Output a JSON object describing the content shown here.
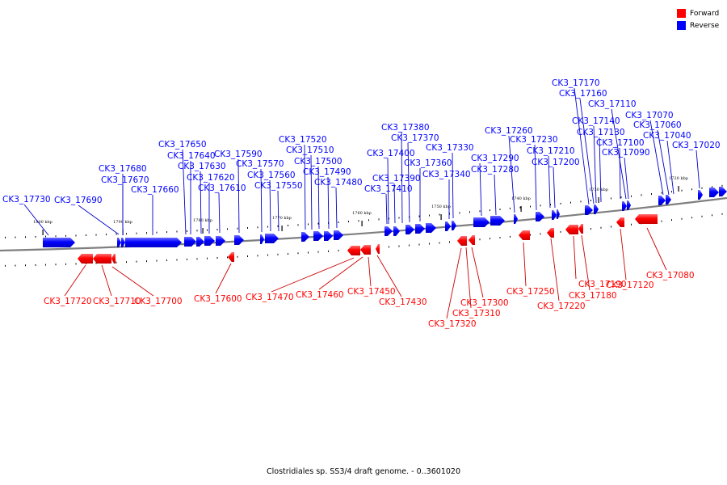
{
  "legend": {
    "forward_label": "Forward",
    "reverse_label": "Reverse",
    "forward_color": "#ff0000",
    "reverse_color": "#0000ff"
  },
  "caption": "Clostridiales sp. SS3/4 draft genome. - 0..3601020",
  "backbone_color": "#7f7f7f",
  "leader_forward_color": "#cc0000",
  "leader_reverse_color": "#0000cc",
  "scale_ticks": [
    "1800 kbp",
    "1790 kbp",
    "1780 kbp",
    "1770 kbp",
    "1760 kbp",
    "1750 kbp",
    "1740 kbp",
    "1730 kbp",
    "1720 kbp"
  ],
  "reverse_genes": [
    "CK3_17730",
    "CK3_17690",
    "CK3_17680",
    "CK3_17670",
    "CK3_17660",
    "CK3_17650",
    "CK3_17640",
    "CK3_17630",
    "CK3_17620",
    "CK3_17610",
    "CK3_17590",
    "CK3_17570",
    "CK3_17560",
    "CK3_17550",
    "CK3_17520",
    "CK3_17510",
    "CK3_17500",
    "CK3_17490",
    "CK3_17480",
    "CK3_17410",
    "CK3_17400",
    "CK3_17390",
    "CK3_17380",
    "CK3_17370",
    "CK3_17360",
    "CK3_17340",
    "CK3_17330",
    "CK3_17290",
    "CK3_17280",
    "CK3_17260",
    "CK3_17230",
    "CK3_17210",
    "CK3_17200",
    "CK3_17170",
    "CK3_17160",
    "CK3_17140",
    "CK3_17130",
    "CK3_17110",
    "CK3_17100",
    "CK3_17090",
    "CK3_17070",
    "CK3_17060",
    "CK3_17040",
    "CK3_17020"
  ],
  "forward_genes": [
    "CK3_17720",
    "CK3_17710",
    "CK3_17700",
    "CK3_17600",
    "CK3_17470",
    "CK3_17460",
    "CK3_17450",
    "CK3_17430",
    "CK3_17320",
    "CK3_17310",
    "CK3_17300",
    "CK3_17250",
    "CK3_17220",
    "CK3_17190",
    "CK3_17180",
    "CK3_17120",
    "CK3_17080"
  ]
}
